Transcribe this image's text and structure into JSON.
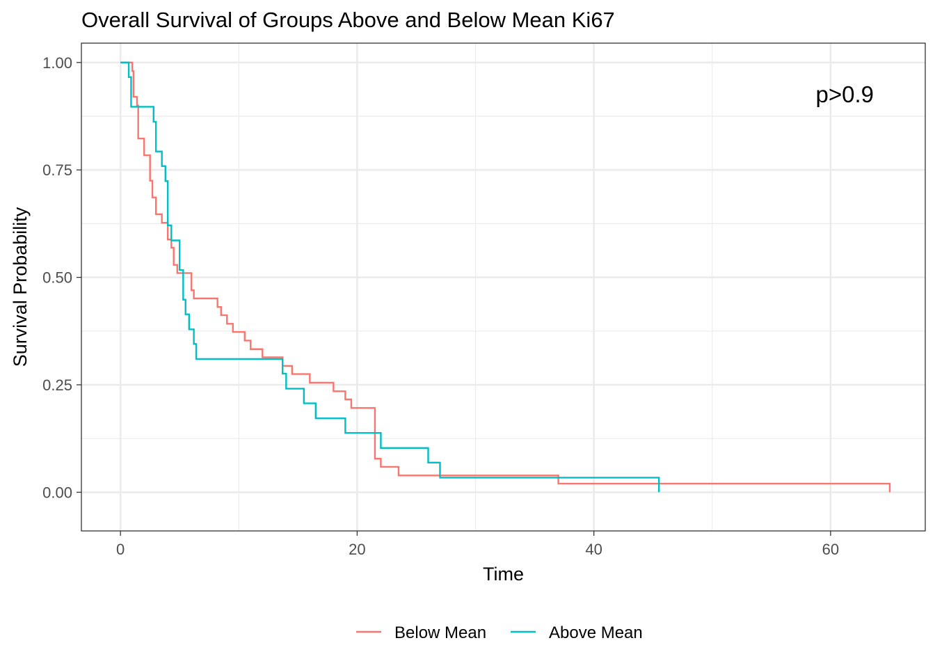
{
  "chart_data": {
    "type": "line",
    "title": "Overall Survival of Groups Above and Below Mean Ki67",
    "xlabel": "Time",
    "ylabel": "Survival Probability",
    "xlim": [
      -3.3,
      68
    ],
    "ylim": [
      -0.09,
      1.045
    ],
    "xticks": [
      0,
      20,
      40,
      60
    ],
    "xtick_labels": [
      "0",
      "20",
      "40",
      "60"
    ],
    "yticks": [
      0,
      0.25,
      0.5,
      0.75,
      1.0
    ],
    "ytick_labels": [
      "0.00",
      "0.25",
      "0.50",
      "0.75",
      "1.00"
    ],
    "grid": true,
    "legend_position": "bottom",
    "annotation": "p>0.9",
    "series": [
      {
        "name": "Below Mean",
        "color": "#F8766D",
        "step": true,
        "x": [
          0,
          1.0,
          1.1,
          1.4,
          1.5,
          2.0,
          2.5,
          2.7,
          3.0,
          3.5,
          4.0,
          4.3,
          4.5,
          4.8,
          5.3,
          6.0,
          6.2,
          8.2,
          8.5,
          9.0,
          9.5,
          10.0,
          10.5,
          11.0,
          12.0,
          13.7,
          14.5,
          16.0,
          18.0,
          19.0,
          19.5,
          21.5,
          22.0,
          23.5,
          37.0,
          65.0
        ],
        "y": [
          1.0,
          0.98,
          0.92,
          0.9,
          0.823,
          0.784,
          0.725,
          0.686,
          0.647,
          0.627,
          0.588,
          0.569,
          0.529,
          0.51,
          0.51,
          0.47,
          0.451,
          0.431,
          0.412,
          0.392,
          0.373,
          0.373,
          0.353,
          0.333,
          0.314,
          0.294,
          0.275,
          0.255,
          0.235,
          0.216,
          0.196,
          0.078,
          0.059,
          0.039,
          0.02,
          0.0
        ]
      },
      {
        "name": "Above Mean",
        "color": "#00BFC4",
        "step": true,
        "x": [
          0,
          0.7,
          0.9,
          1.0,
          2.8,
          3.0,
          3.5,
          3.8,
          4.0,
          4.3,
          5.0,
          5.3,
          5.5,
          5.8,
          6.2,
          6.4,
          13.7,
          14.0,
          15.5,
          16.5,
          19.0,
          19.5,
          22.0,
          26.0,
          27.0,
          45.5
        ],
        "y": [
          1.0,
          0.966,
          0.897,
          0.897,
          0.862,
          0.793,
          0.759,
          0.724,
          0.621,
          0.586,
          0.517,
          0.448,
          0.414,
          0.379,
          0.345,
          0.31,
          0.276,
          0.241,
          0.207,
          0.172,
          0.138,
          0.138,
          0.103,
          0.069,
          0.034,
          0.0
        ]
      }
    ]
  }
}
